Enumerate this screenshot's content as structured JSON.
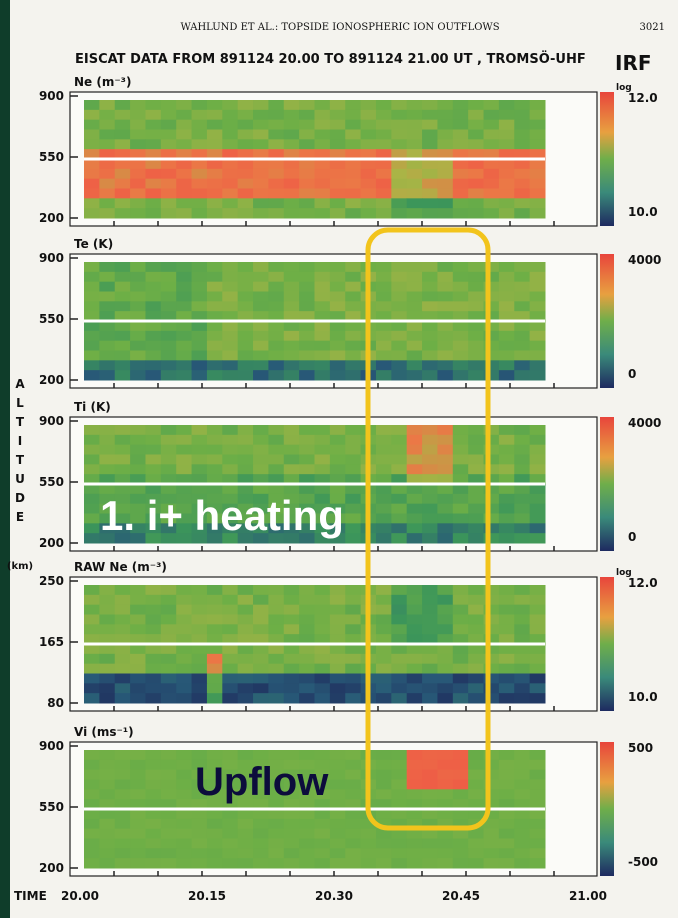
{
  "header": {
    "running_title": "WAHLUND ET AL.: TOPSIDE IONOSPHERIC ION OUTFLOWS",
    "page_number": "3021"
  },
  "title": "EISCAT DATA FROM 891124 20.00 TO 891124 21.00 UT , TROMSÖ-UHF",
  "logo": "IRF",
  "y_axis_label": {
    "letters": [
      "A",
      "L",
      "T",
      "I",
      "T",
      "U",
      "D",
      "E"
    ],
    "unit": "(km)"
  },
  "panels": [
    {
      "label": "Ne (m⁻³)",
      "yticks": [
        "900",
        "550",
        "200"
      ],
      "scale_note": "log",
      "colorbar_ticks": [
        "12.0",
        "10.0"
      ]
    },
    {
      "label": "Te (K)",
      "yticks": [
        "900",
        "550",
        "200"
      ],
      "colorbar_ticks": [
        "4000",
        "0"
      ]
    },
    {
      "label": "Ti (K)",
      "yticks": [
        "900",
        "550",
        "200"
      ],
      "colorbar_ticks": [
        "4000",
        "0"
      ]
    },
    {
      "label": "RAW Ne (m⁻³)",
      "yticks": [
        "250",
        "165",
        "80"
      ],
      "scale_note": "log",
      "colorbar_ticks": [
        "12.0",
        "10.0"
      ]
    },
    {
      "label": "Vi (ms⁻¹)",
      "yticks": [
        "900",
        "550",
        "200"
      ],
      "colorbar_ticks": [
        "500",
        "-500"
      ]
    }
  ],
  "x_axis": {
    "label": "TIME",
    "ticks": [
      "20.00",
      "20.15",
      "20.30",
      "20.45",
      "21.00"
    ]
  },
  "annotations": {
    "heating": "1. i+ heating",
    "upflow": "Upflow"
  }
}
